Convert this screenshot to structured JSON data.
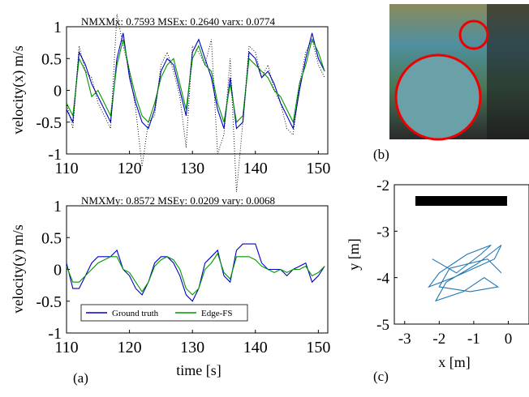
{
  "chart_data": [
    {
      "type": "line",
      "annotation": "NMXMx: 0.7593 MSEx: 0.2640 varx: 0.0774",
      "y_label": "velocity(x) m/s",
      "x": [
        110,
        111,
        112,
        113,
        114,
        115,
        116,
        117,
        118,
        119,
        120,
        121,
        122,
        123,
        124,
        125,
        126,
        127,
        128,
        129,
        130,
        131,
        132,
        133,
        134,
        135,
        136,
        137,
        138,
        139,
        140,
        141,
        142,
        143,
        144,
        145,
        146,
        147,
        148,
        149,
        150,
        151
      ],
      "series": [
        {
          "name": "Ground truth",
          "color": "#0000cc",
          "values": [
            -0.3,
            -0.5,
            0.6,
            0.4,
            0.1,
            -0.1,
            -0.3,
            -0.5,
            0.5,
            0.9,
            0.2,
            -0.2,
            -0.5,
            -0.6,
            -0.3,
            0.3,
            0.5,
            0.4,
            0.0,
            -0.4,
            0.6,
            0.8,
            0.5,
            0.2,
            -0.3,
            -0.6,
            0.2,
            -0.6,
            -0.5,
            0.6,
            0.5,
            0.2,
            0.3,
            0.1,
            -0.2,
            -0.4,
            -0.6,
            0.0,
            0.5,
            0.9,
            0.5,
            0.3
          ]
        },
        {
          "name": "Edge-FS",
          "color": "#009900",
          "values": [
            -0.2,
            -0.4,
            0.5,
            0.3,
            -0.1,
            0.0,
            -0.2,
            -0.4,
            0.4,
            0.8,
            0.3,
            -0.1,
            -0.4,
            -0.5,
            -0.2,
            0.2,
            0.4,
            0.5,
            0.1,
            -0.3,
            0.5,
            0.7,
            0.4,
            0.3,
            -0.2,
            -0.5,
            0.1,
            -0.5,
            -0.4,
            0.5,
            0.4,
            0.3,
            0.2,
            0.0,
            -0.1,
            -0.3,
            -0.5,
            0.1,
            0.4,
            0.8,
            0.6,
            0.3
          ]
        },
        {
          "color": "#000000",
          "style": "dotted",
          "values": [
            -0.2,
            -0.6,
            0.7,
            0.3,
            0.2,
            -0.2,
            -0.4,
            -0.6,
            1.2,
            0.7,
            0.3,
            -0.3,
            -1.2,
            -0.5,
            -0.4,
            0.4,
            0.6,
            0.3,
            -0.1,
            -0.9,
            0.7,
            0.6,
            0.4,
            0.8,
            -1.0,
            -0.7,
            0.5,
            -1.6,
            -0.5,
            0.7,
            0.6,
            0.2,
            0.4,
            0.0,
            -0.2,
            -0.6,
            -0.7,
            0.1,
            0.6,
            0.8,
            0.4,
            0.2
          ]
        }
      ],
      "xlim": [
        110,
        151.5
      ],
      "xticks": [
        110,
        120,
        130,
        140,
        150
      ],
      "ylim": [
        -1,
        1
      ],
      "yticks": [
        -1,
        -0.5,
        0,
        0.5,
        1
      ]
    },
    {
      "type": "line",
      "annotation": "NMXMy: 0.8572 MSEy: 0.0209 vary: 0.0068",
      "y_label": "velocity(y) m/s",
      "x_label": "time [s]",
      "panel_label": "(a)",
      "x": [
        110,
        111,
        112,
        113,
        114,
        115,
        116,
        117,
        118,
        119,
        120,
        121,
        122,
        123,
        124,
        125,
        126,
        127,
        128,
        129,
        130,
        131,
        132,
        133,
        134,
        135,
        136,
        137,
        138,
        139,
        140,
        141,
        142,
        143,
        144,
        145,
        146,
        147,
        148,
        149,
        150,
        151
      ],
      "series": [
        {
          "name": "Ground truth",
          "color": "#0000cc",
          "values": [
            0.1,
            -0.3,
            -0.3,
            -0.1,
            0.1,
            0.2,
            0.2,
            0.2,
            0.3,
            0.0,
            -0.1,
            -0.3,
            -0.4,
            -0.2,
            0.1,
            0.2,
            0.2,
            0.1,
            -0.1,
            -0.4,
            -0.5,
            -0.3,
            0.1,
            0.2,
            0.3,
            -0.1,
            -0.2,
            0.3,
            0.4,
            0.4,
            0.4,
            0.1,
            0.0,
            0.0,
            0.0,
            -0.1,
            0.0,
            0.05,
            0.1,
            -0.2,
            -0.1,
            0.05
          ]
        },
        {
          "name": "Edge-FS",
          "color": "#009900",
          "values": [
            0.05,
            -0.2,
            -0.2,
            -0.1,
            0.0,
            0.1,
            0.15,
            0.2,
            0.2,
            0.0,
            -0.05,
            -0.2,
            -0.35,
            -0.2,
            0.05,
            0.15,
            0.2,
            0.15,
            0.0,
            -0.3,
            -0.4,
            -0.3,
            0.0,
            0.1,
            0.25,
            -0.05,
            -0.15,
            0.2,
            0.2,
            0.2,
            0.15,
            0.05,
            0.0,
            -0.05,
            0.0,
            -0.05,
            0.0,
            0.0,
            0.05,
            -0.1,
            -0.05,
            0.05
          ]
        }
      ],
      "xlim": [
        110,
        151.5
      ],
      "xticks": [
        110,
        120,
        130,
        140,
        150
      ],
      "ylim": [
        -1,
        1
      ],
      "yticks": [
        -1,
        -0.5,
        0,
        0.5,
        1
      ],
      "legend": "lower left"
    },
    {
      "type": "line",
      "x_label": "x [m]",
      "y_label": "y [m]",
      "panel_label": "(c)",
      "x": [
        -2.2,
        -1.5,
        -0.8,
        -0.5,
        -1.2,
        -2.0,
        -2.3,
        -1.6,
        -1.0,
        -0.4,
        -0.2,
        -0.9,
        -1.8,
        -2.1,
        -1.3,
        -0.7,
        -0.3,
        -1.1,
        -2.0,
        -1.7,
        -0.6,
        -0.2
      ],
      "series": [
        {
          "color": "#1f77b4",
          "values": [
            -3.6,
            -3.9,
            -3.5,
            -3.3,
            -3.5,
            -3.9,
            -4.2,
            -4.0,
            -3.8,
            -3.6,
            -3.3,
            -3.7,
            -4.1,
            -4.5,
            -4.3,
            -4.0,
            -4.2,
            -4.3,
            -4.2,
            -3.8,
            -3.6,
            -3.9
          ]
        }
      ],
      "xlim": [
        -3.3,
        0.6
      ],
      "xticks": [
        -3,
        -2,
        -1,
        0
      ],
      "ylim": [
        -5,
        -2
      ],
      "yticks": [
        -5,
        -4,
        -3,
        -2
      ]
    }
  ],
  "image": {
    "panel_label": "(b)"
  }
}
